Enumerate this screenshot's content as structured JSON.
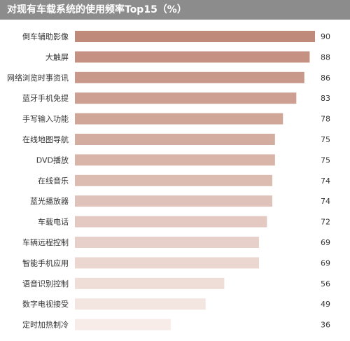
{
  "header": {
    "title": "对现有车载系统的使用频率Top15（%）"
  },
  "colors": {
    "header_bg": "#8c8c8c",
    "bar_dark": "#c08a7a",
    "bar_light": "#f7ece8"
  },
  "chart_data": {
    "type": "bar",
    "orientation": "horizontal",
    "title": "对现有车载系统的使用频率Top15（%）",
    "categories": [
      "倒车辅助影像",
      "大触屏",
      "网络浏览时事资讯",
      "蓝牙手机免提",
      "手写输入功能",
      "在线地图导航",
      "DVD播放",
      "在线音乐",
      "蓝光播放器",
      "车载电话",
      "车辆远程控制",
      "智能手机应用",
      "语音识别控制",
      "数字电视接受",
      "定时加热制冷"
    ],
    "values": [
      90,
      88,
      86,
      83,
      78,
      75,
      75,
      74,
      74,
      72,
      69,
      69,
      56,
      49,
      36
    ],
    "xlim": [
      0,
      90
    ],
    "grid": false,
    "legend": "none"
  }
}
